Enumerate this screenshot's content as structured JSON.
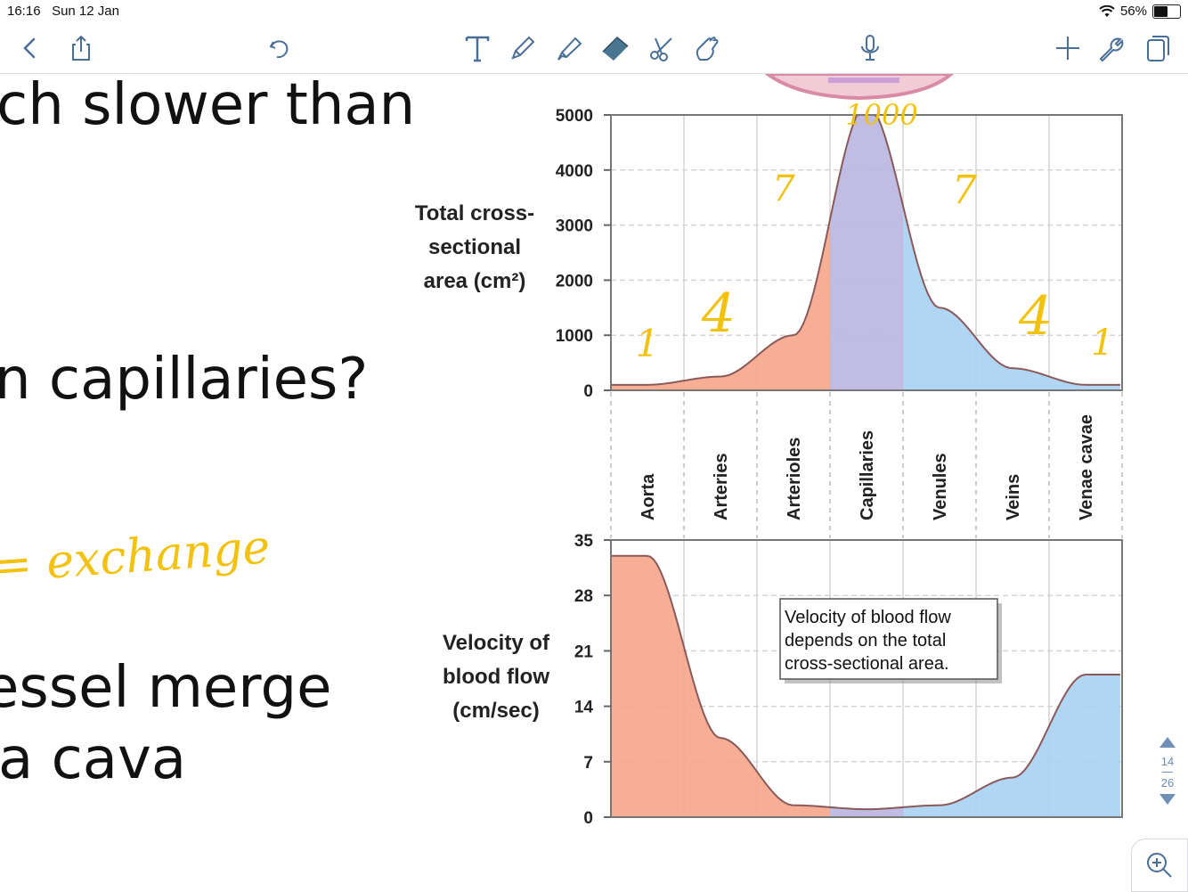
{
  "status": {
    "time": "16:16",
    "date": "Sun 12 Jan",
    "battery_text": "56%",
    "battery_level": 0.56
  },
  "toolbar": {
    "icons": [
      "back-chevron-icon",
      "share-icon",
      "undo-icon",
      "text-tool-icon",
      "pen-icon",
      "highlighter-icon",
      "eraser-icon",
      "lasso-scissors-icon",
      "touch-hand-icon",
      "microphone-icon",
      "plus-icon",
      "wrench-icon",
      "pages-icon"
    ]
  },
  "slide": {
    "lines": [
      "ch slower than",
      "n capillaries?",
      "essel merge",
      "a cava"
    ],
    "ink_word": "= exchange"
  },
  "top_chart": {
    "ylabel_lines": [
      "Total cross-",
      "sectional",
      "area (cm²)"
    ],
    "y_ticks": [
      "5000",
      "4000",
      "3000",
      "2000",
      "1000",
      "0"
    ]
  },
  "bottom_chart": {
    "ylabel_lines": [
      "Velocity of",
      "blood flow",
      "(cm/sec)"
    ],
    "y_ticks": [
      "35",
      "28",
      "21",
      "14",
      "7",
      "0"
    ],
    "callout_lines": [
      "Velocity of blood flow",
      "depends on the total",
      "cross-sectional area."
    ]
  },
  "vessels": [
    "Aorta",
    "Arteries",
    "Arterioles",
    "Capillaries",
    "Venules",
    "Veins",
    "Venae cavae"
  ],
  "annotations": [
    "1000",
    "7",
    "7",
    "1",
    "4",
    "4",
    "1"
  ],
  "pager": {
    "current": "14",
    "total": "26"
  },
  "colors": {
    "arterial": "#f5a58a",
    "capillary": "#b9b5e0",
    "venous": "#a9d1f2",
    "ink": "#f2c20f",
    "icon": "#4a6f96"
  },
  "chart_data": [
    {
      "type": "area",
      "x": [
        "Aorta",
        "Arteries",
        "Arterioles",
        "Capillaries",
        "Venules",
        "Veins",
        "Venae cavae"
      ],
      "ylabel": "Total cross-sectional area (cm²)",
      "ylim": [
        0,
        5000
      ],
      "values": [
        100,
        250,
        1000,
        5200,
        1500,
        400,
        100
      ]
    },
    {
      "type": "area",
      "x": [
        "Aorta",
        "Arteries",
        "Arterioles",
        "Capillaries",
        "Venules",
        "Veins",
        "Venae cavae"
      ],
      "ylabel": "Velocity of blood flow (cm/sec)",
      "ylim": [
        0,
        35
      ],
      "values": [
        33,
        10,
        1.5,
        1,
        1.5,
        5,
        18
      ]
    }
  ]
}
